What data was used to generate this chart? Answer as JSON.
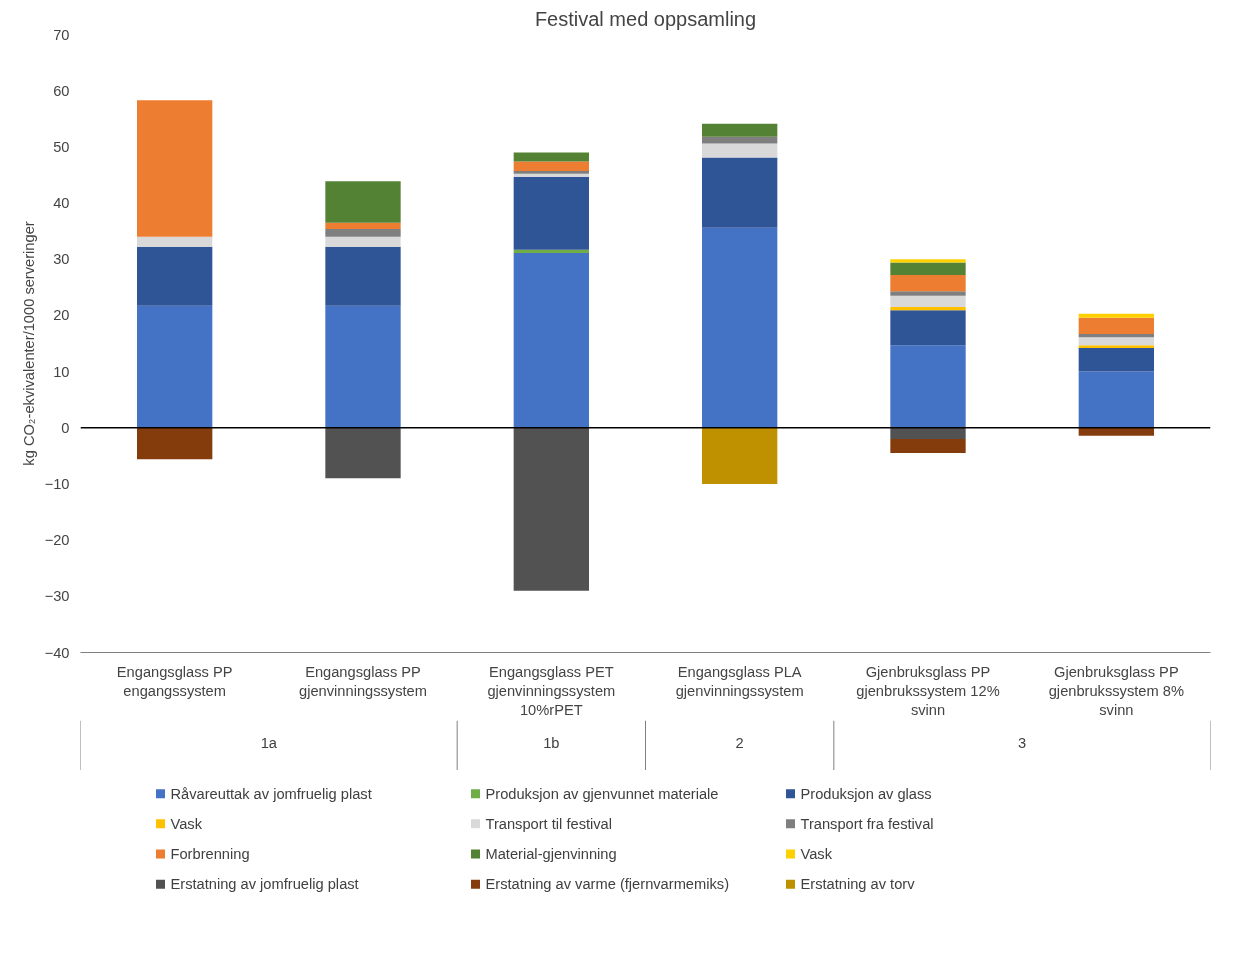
{
  "chart_data": {
    "type": "bar",
    "stacked": true,
    "title": "Festival med oppsamling",
    "ylabel": "kg CO₂-ekvivalenter/1000 serveringer",
    "categories": [
      "Engangsglass PP engangssystem",
      "Engangsglass PP gjenvinningssystem",
      "Engangsglass PET gjenvinningssystem 10%rPET",
      "Engangsglass PLA gjenvinningssystem",
      "Gjenbruksglass PP gjenbrukssystem 12% svinn",
      "Gjenbruksglass PP gjenbrukssystem 8% svinn"
    ],
    "annotations": [
      "1a",
      "1b",
      "2",
      "3"
    ],
    "ylim": [
      -40,
      70
    ],
    "yticks": [
      -40,
      -30,
      -20,
      -10,
      0,
      10,
      20,
      30,
      40,
      50,
      60,
      70
    ],
    "grid": false,
    "legend": "bottom",
    "ref_lines": [
      {
        "axis": "y",
        "value": 0,
        "color": "#000000"
      }
    ],
    "series": [
      {
        "name": "Råvareuttak av jomfruelig plast",
        "color": "#4472c4",
        "values": [
          21.7,
          21.7,
          31.1,
          35.6,
          14.7,
          10.0
        ]
      },
      {
        "name": "Produksjon av gjenvunnet materiale",
        "color": "#70ad47",
        "values": [
          null,
          null,
          0.6,
          null,
          null,
          null
        ]
      },
      {
        "name": "Produksjon av glass",
        "color": "#2f5597",
        "values": [
          10.5,
          10.5,
          13.0,
          12.5,
          6.2,
          4.2
        ]
      },
      {
        "name": "Vask",
        "color": "#ffc000",
        "values": [
          null,
          null,
          null,
          null,
          0.6,
          0.5
        ]
      },
      {
        "name": "Transport til festival",
        "color": "#d9d9d9",
        "values": [
          1.8,
          1.8,
          0.5,
          2.5,
          2.0,
          1.4
        ]
      },
      {
        "name": "Transport fra festival",
        "color": "#7f7f7f",
        "values": [
          null,
          1.4,
          0.5,
          1.2,
          0.8,
          0.6
        ]
      },
      {
        "name": "Forbrenning",
        "color": "#ed7d31",
        "values": [
          24.3,
          1.1,
          1.7,
          null,
          2.9,
          2.9
        ]
      },
      {
        "name": "Material-gjenvinning",
        "color": "#548235",
        "values": [
          null,
          7.4,
          1.6,
          2.3,
          2.2,
          null
        ]
      },
      {
        "name": "Vask",
        "color": "#ffd000",
        "values": [
          null,
          null,
          null,
          null,
          0.6,
          0.7
        ]
      },
      {
        "name": "Erstatning av jomfruelig plast",
        "color": "#525252",
        "values": [
          null,
          -9.0,
          -29.0,
          null,
          -2.0,
          null
        ]
      },
      {
        "name": "Erstatning av varme (fjernvarmemiks)",
        "color": "#843c0c",
        "values": [
          -5.6,
          null,
          null,
          null,
          -2.5,
          -1.4
        ]
      },
      {
        "name": "Erstatning av torv",
        "color": "#bf9000",
        "values": [
          null,
          null,
          null,
          -10.0,
          null,
          null
        ]
      }
    ]
  }
}
